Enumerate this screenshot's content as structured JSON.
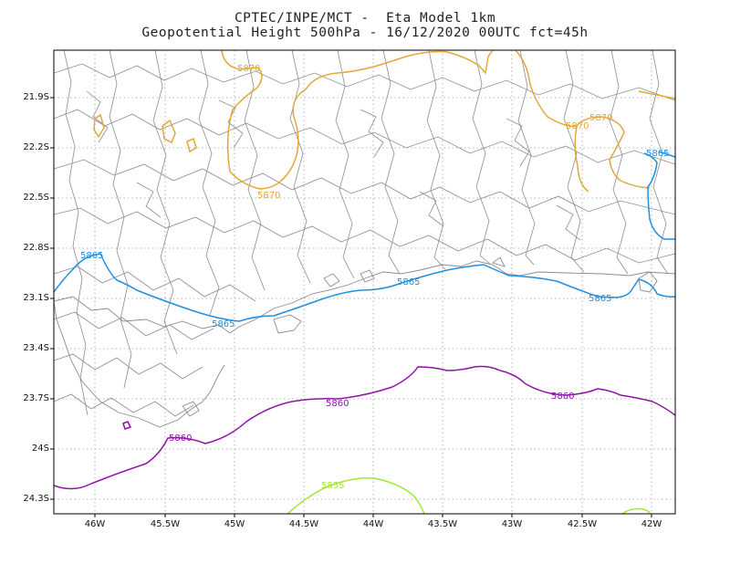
{
  "header": {
    "line1": "CPTEC/INPE/MCT -  Eta Model 1km",
    "line2": "Geopotential Height 500hPa - 16/12/2020 00UTC fct=45h"
  },
  "axes": {
    "lat_labels": [
      "21.9S",
      "22.2S",
      "22.5S",
      "22.8S",
      "23.1S",
      "23.4S",
      "23.7S",
      "24S",
      "24.3S"
    ],
    "lon_labels": [
      "46W",
      "45.5W",
      "45W",
      "44.5W",
      "44W",
      "43.5W",
      "43W",
      "42.5W",
      "42W"
    ],
    "lon_range": [
      -46.3,
      -41.8
    ],
    "lat_range": [
      -24.45,
      -21.65
    ],
    "grid": "dotted"
  },
  "contours": [
    {
      "value": "5870",
      "color": "#e0a93a",
      "labels_shown": 4
    },
    {
      "value": "5865",
      "color": "#1e90e0",
      "labels_shown": 5
    },
    {
      "value": "5860",
      "color": "#9013a8",
      "labels_shown": 3
    },
    {
      "value": "5855",
      "color": "#9ee832",
      "labels_shown": 1
    }
  ],
  "colors": {
    "boundaries": "#8c8c8c",
    "frame": "#000000",
    "grid": "#a0a0a0"
  }
}
